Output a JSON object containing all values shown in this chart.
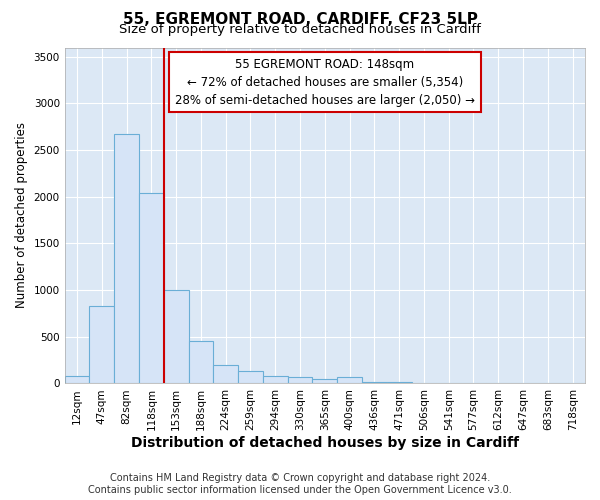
{
  "title1": "55, EGREMONT ROAD, CARDIFF, CF23 5LP",
  "title2": "Size of property relative to detached houses in Cardiff",
  "xlabel": "Distribution of detached houses by size in Cardiff",
  "ylabel": "Number of detached properties",
  "categories": [
    "12sqm",
    "47sqm",
    "82sqm",
    "118sqm",
    "153sqm",
    "188sqm",
    "224sqm",
    "259sqm",
    "294sqm",
    "330sqm",
    "365sqm",
    "400sqm",
    "436sqm",
    "471sqm",
    "506sqm",
    "541sqm",
    "577sqm",
    "612sqm",
    "647sqm",
    "683sqm",
    "718sqm"
  ],
  "values": [
    75,
    830,
    2670,
    2040,
    1000,
    450,
    200,
    130,
    80,
    65,
    50,
    70,
    20,
    15,
    10,
    8,
    5,
    3,
    2,
    1,
    1
  ],
  "bar_color": "#d6e4f7",
  "bar_edge_color": "#6aaed6",
  "vline_color": "#cc0000",
  "annotation_text": "55 EGREMONT ROAD: 148sqm\n← 72% of detached houses are smaller (5,354)\n28% of semi-detached houses are larger (2,050) →",
  "annotation_box_color": "#cc0000",
  "ylim": [
    0,
    3600
  ],
  "yticks": [
    0,
    500,
    1000,
    1500,
    2000,
    2500,
    3000,
    3500
  ],
  "footnote": "Contains HM Land Registry data © Crown copyright and database right 2024.\nContains public sector information licensed under the Open Government Licence v3.0.",
  "fig_bg_color": "#ffffff",
  "plot_bg_color": "#dce8f5",
  "grid_color": "#ffffff",
  "title1_fontsize": 11,
  "title2_fontsize": 9.5,
  "xlabel_fontsize": 10,
  "ylabel_fontsize": 8.5,
  "tick_fontsize": 7.5,
  "footnote_fontsize": 7,
  "annotation_fontsize": 8.5
}
